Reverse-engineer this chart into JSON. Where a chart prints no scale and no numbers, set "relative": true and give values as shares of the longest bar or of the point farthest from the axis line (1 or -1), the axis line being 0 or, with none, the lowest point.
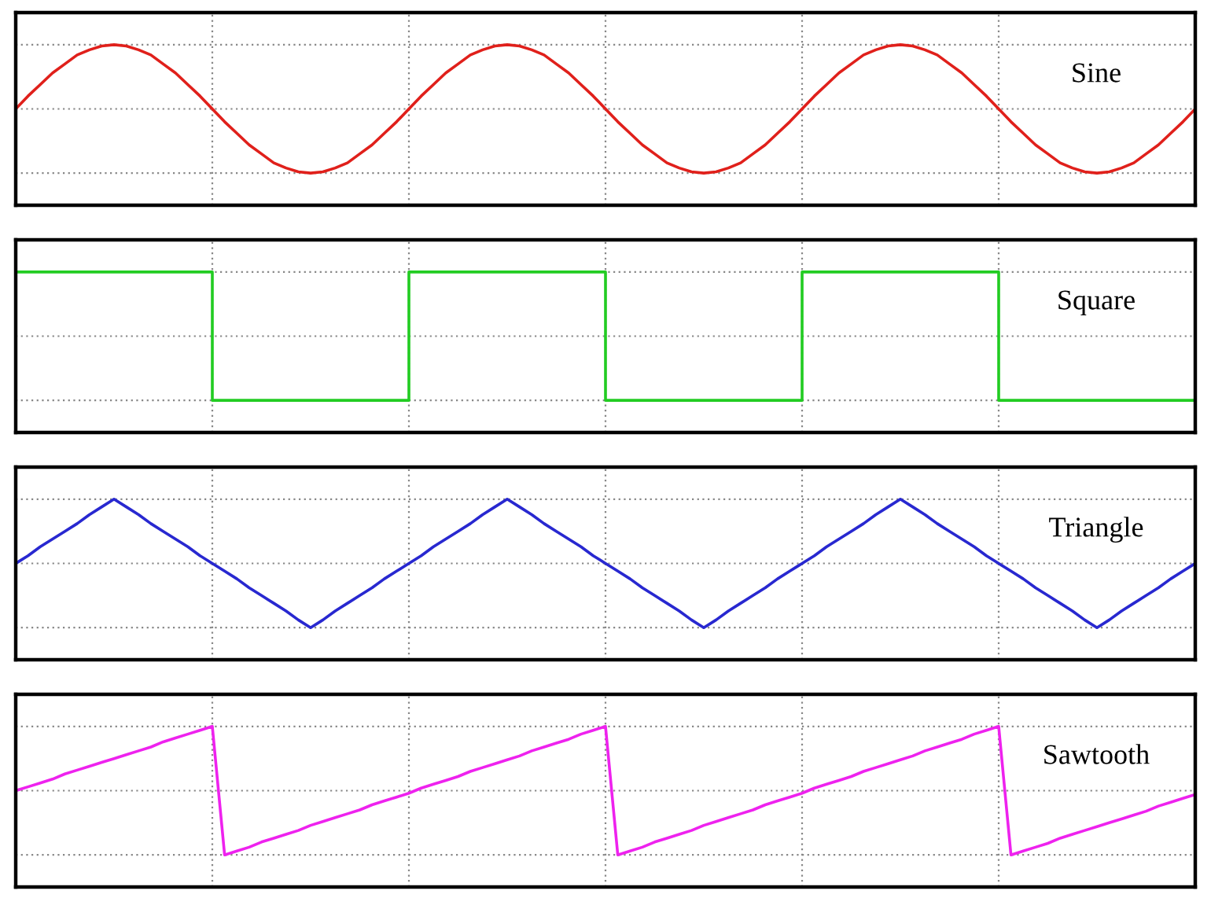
{
  "chart_data": [
    {
      "type": "line",
      "relative": true,
      "grid": true,
      "tick_labels": false,
      "categories": [
        null,
        null,
        null,
        null,
        null,
        null,
        null,
        null,
        null,
        null,
        null,
        null,
        null,
        null,
        null,
        null,
        null,
        null,
        null,
        null,
        null,
        null,
        null,
        null,
        null,
        null,
        null,
        null,
        null,
        null,
        null,
        null,
        null,
        null,
        null,
        null,
        null,
        null,
        null,
        null,
        null,
        null,
        null,
        null,
        null,
        null,
        null,
        null,
        null,
        null,
        null,
        null,
        null,
        null,
        null,
        null,
        null,
        null,
        null,
        null,
        null,
        null,
        null,
        null,
        null,
        null,
        null,
        null,
        null,
        null,
        null,
        null,
        null,
        null,
        null,
        null,
        null,
        null,
        null,
        null,
        null,
        null,
        null,
        null,
        null,
        null,
        null,
        null,
        null,
        null,
        null,
        null,
        null,
        null,
        null,
        null,
        null
      ],
      "series": [
        {
          "name": "Sine",
          "color": "#e0201b",
          "values": [
            0.5,
            0.6,
            0.69,
            0.78,
            0.85,
            0.92,
            0.96,
            0.99,
            1.0,
            0.99,
            0.96,
            0.92,
            0.85,
            0.78,
            0.69,
            0.6,
            0.5,
            0.4,
            0.31,
            0.22,
            0.15,
            0.08,
            0.04,
            0.01,
            0.0,
            0.01,
            0.04,
            0.08,
            0.15,
            0.22,
            0.31,
            0.4,
            0.5,
            0.6,
            0.69,
            0.78,
            0.85,
            0.92,
            0.96,
            0.99,
            1.0,
            0.99,
            0.96,
            0.92,
            0.85,
            0.78,
            0.69,
            0.6,
            0.5,
            0.4,
            0.31,
            0.22,
            0.15,
            0.08,
            0.04,
            0.01,
            0.0,
            0.01,
            0.04,
            0.08,
            0.15,
            0.22,
            0.31,
            0.4,
            0.5,
            0.6,
            0.69,
            0.78,
            0.85,
            0.92,
            0.96,
            0.99,
            1.0,
            0.99,
            0.96,
            0.92,
            0.85,
            0.78,
            0.69,
            0.6,
            0.5,
            0.4,
            0.31,
            0.22,
            0.15,
            0.08,
            0.04,
            0.01,
            0.0,
            0.01,
            0.04,
            0.08,
            0.15,
            0.22,
            0.31,
            0.4,
            0.5
          ]
        }
      ]
    },
    {
      "type": "step",
      "relative": true,
      "grid": true,
      "tick_labels": false,
      "categories": [
        null,
        null,
        null,
        null,
        null,
        null,
        null,
        null,
        null,
        null,
        null,
        null,
        null,
        null,
        null,
        null,
        null,
        null,
        null,
        null,
        null,
        null,
        null,
        null,
        null,
        null,
        null,
        null,
        null,
        null,
        null,
        null,
        null,
        null,
        null,
        null,
        null,
        null,
        null,
        null,
        null,
        null,
        null,
        null,
        null,
        null,
        null,
        null,
        null,
        null,
        null,
        null,
        null,
        null,
        null,
        null,
        null,
        null,
        null,
        null,
        null,
        null,
        null,
        null,
        null,
        null,
        null,
        null,
        null,
        null,
        null,
        null,
        null,
        null,
        null,
        null,
        null,
        null,
        null,
        null,
        null,
        null,
        null,
        null,
        null,
        null,
        null,
        null,
        null,
        null,
        null,
        null,
        null,
        null,
        null,
        null,
        null
      ],
      "series": [
        {
          "name": "Square",
          "color": "#22cc22",
          "values": [
            1,
            1,
            1,
            1,
            1,
            1,
            1,
            1,
            1,
            1,
            1,
            1,
            1,
            1,
            1,
            1,
            0,
            0,
            0,
            0,
            0,
            0,
            0,
            0,
            0,
            0,
            0,
            0,
            0,
            0,
            0,
            0,
            1,
            1,
            1,
            1,
            1,
            1,
            1,
            1,
            1,
            1,
            1,
            1,
            1,
            1,
            1,
            1,
            0,
            0,
            0,
            0,
            0,
            0,
            0,
            0,
            0,
            0,
            0,
            0,
            0,
            0,
            0,
            0,
            1,
            1,
            1,
            1,
            1,
            1,
            1,
            1,
            1,
            1,
            1,
            1,
            1,
            1,
            1,
            1,
            0,
            0,
            0,
            0,
            0,
            0,
            0,
            0,
            0,
            0,
            0,
            0,
            0,
            0,
            0,
            0,
            0
          ]
        }
      ]
    },
    {
      "type": "line",
      "relative": true,
      "grid": true,
      "tick_labels": false,
      "categories": [
        null,
        null,
        null,
        null,
        null,
        null,
        null,
        null,
        null,
        null,
        null,
        null,
        null,
        null,
        null,
        null,
        null,
        null,
        null,
        null,
        null,
        null,
        null,
        null,
        null,
        null,
        null,
        null,
        null,
        null,
        null,
        null,
        null,
        null,
        null,
        null,
        null,
        null,
        null,
        null,
        null,
        null,
        null,
        null,
        null,
        null,
        null,
        null,
        null,
        null,
        null,
        null,
        null,
        null,
        null,
        null,
        null,
        null,
        null,
        null,
        null,
        null,
        null,
        null,
        null,
        null,
        null,
        null,
        null,
        null,
        null,
        null,
        null,
        null,
        null,
        null,
        null,
        null,
        null,
        null,
        null,
        null,
        null,
        null,
        null,
        null,
        null,
        null,
        null,
        null,
        null,
        null,
        null,
        null,
        null,
        null,
        null
      ],
      "series": [
        {
          "name": "Triangle",
          "color": "#2828d0",
          "values": [
            0.5,
            0.56,
            0.63,
            0.69,
            0.75,
            0.81,
            0.88,
            0.94,
            1,
            0.94,
            0.88,
            0.81,
            0.75,
            0.69,
            0.63,
            0.56,
            0.5,
            0.44,
            0.38,
            0.31,
            0.25,
            0.19,
            0.13,
            0.06,
            0,
            0.06,
            0.13,
            0.19,
            0.25,
            0.31,
            0.38,
            0.44,
            0.5,
            0.56,
            0.63,
            0.69,
            0.75,
            0.81,
            0.88,
            0.94,
            1,
            0.94,
            0.88,
            0.81,
            0.75,
            0.69,
            0.63,
            0.56,
            0.5,
            0.44,
            0.38,
            0.31,
            0.25,
            0.19,
            0.13,
            0.06,
            0,
            0.06,
            0.13,
            0.19,
            0.25,
            0.31,
            0.38,
            0.44,
            0.5,
            0.56,
            0.63,
            0.69,
            0.75,
            0.81,
            0.88,
            0.94,
            1,
            0.94,
            0.88,
            0.81,
            0.75,
            0.69,
            0.63,
            0.56,
            0.5,
            0.44,
            0.38,
            0.31,
            0.25,
            0.19,
            0.13,
            0.06,
            0,
            0.06,
            0.13,
            0.19,
            0.25,
            0.31,
            0.38,
            0.44,
            0.5
          ]
        }
      ]
    },
    {
      "type": "line",
      "relative": true,
      "grid": true,
      "tick_labels": false,
      "categories": [
        null,
        null,
        null,
        null,
        null,
        null,
        null,
        null,
        null,
        null,
        null,
        null,
        null,
        null,
        null,
        null,
        null,
        null,
        null,
        null,
        null,
        null,
        null,
        null,
        null,
        null,
        null,
        null,
        null,
        null,
        null,
        null,
        null,
        null,
        null,
        null,
        null,
        null,
        null,
        null,
        null,
        null,
        null,
        null,
        null,
        null,
        null,
        null,
        null,
        null,
        null,
        null,
        null,
        null,
        null,
        null,
        null,
        null,
        null,
        null,
        null,
        null,
        null,
        null,
        null,
        null,
        null,
        null,
        null,
        null,
        null,
        null,
        null,
        null,
        null,
        null,
        null,
        null,
        null,
        null,
        null,
        null,
        null,
        null,
        null,
        null,
        null,
        null,
        null,
        null,
        null,
        null,
        null,
        null,
        null,
        null,
        null
      ],
      "series": [
        {
          "name": "Sawtooth",
          "color": "#ee22ee",
          "values": [
            0.5,
            0.53,
            0.56,
            0.59,
            0.63,
            0.66,
            0.69,
            0.72,
            0.75,
            0.78,
            0.81,
            0.84,
            0.88,
            0.91,
            0.94,
            0.97,
            1,
            0,
            0.03,
            0.06,
            0.1,
            0.13,
            0.16,
            0.19,
            0.23,
            0.26,
            0.29,
            0.32,
            0.35,
            0.39,
            0.42,
            0.45,
            0.48,
            0.52,
            0.55,
            0.58,
            0.61,
            0.65,
            0.68,
            0.71,
            0.74,
            0.77,
            0.81,
            0.84,
            0.87,
            0.9,
            0.94,
            0.97,
            1,
            0,
            0.03,
            0.06,
            0.1,
            0.13,
            0.16,
            0.19,
            0.23,
            0.26,
            0.29,
            0.32,
            0.35,
            0.39,
            0.42,
            0.45,
            0.48,
            0.52,
            0.55,
            0.58,
            0.61,
            0.65,
            0.68,
            0.71,
            0.74,
            0.77,
            0.81,
            0.84,
            0.87,
            0.9,
            0.94,
            0.97,
            1,
            0,
            0.03,
            0.06,
            0.09,
            0.13,
            0.16,
            0.19,
            0.22,
            0.25,
            0.28,
            0.31,
            0.34,
            0.38,
            0.41,
            0.44,
            0.47
          ]
        }
      ]
    }
  ]
}
